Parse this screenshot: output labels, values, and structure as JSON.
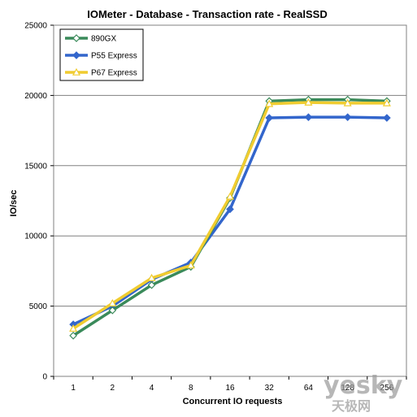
{
  "chart_data": {
    "type": "line",
    "title": "IOMeter - Database - Transaction rate - RealSSD",
    "xlabel": "Concurrent IO requests",
    "ylabel": "IO/sec",
    "categories": [
      "1",
      "2",
      "4",
      "8",
      "16",
      "32",
      "64",
      "128",
      "256"
    ],
    "ylim": [
      0,
      25000
    ],
    "yticks": [
      0,
      5000,
      10000,
      15000,
      20000,
      25000
    ],
    "grid": "horizontal",
    "legend_position": "top-left",
    "series": [
      {
        "name": "890GX",
        "color": "#3a8a5a",
        "marker": "diamond-open",
        "values": [
          2900,
          4700,
          6500,
          7800,
          12700,
          19600,
          19700,
          19700,
          19600
        ]
      },
      {
        "name": "P55 Express",
        "color": "#3366cc",
        "marker": "diamond-filled",
        "values": [
          3700,
          5000,
          6900,
          8100,
          11900,
          18400,
          18450,
          18450,
          18400
        ]
      },
      {
        "name": "P67 Express",
        "color": "#f0cc30",
        "marker": "triangle-open",
        "values": [
          3400,
          5200,
          7000,
          7900,
          12800,
          19400,
          19500,
          19450,
          19450
        ]
      }
    ]
  },
  "watermark": {
    "text": "yesky",
    "subtext": "天极网"
  }
}
